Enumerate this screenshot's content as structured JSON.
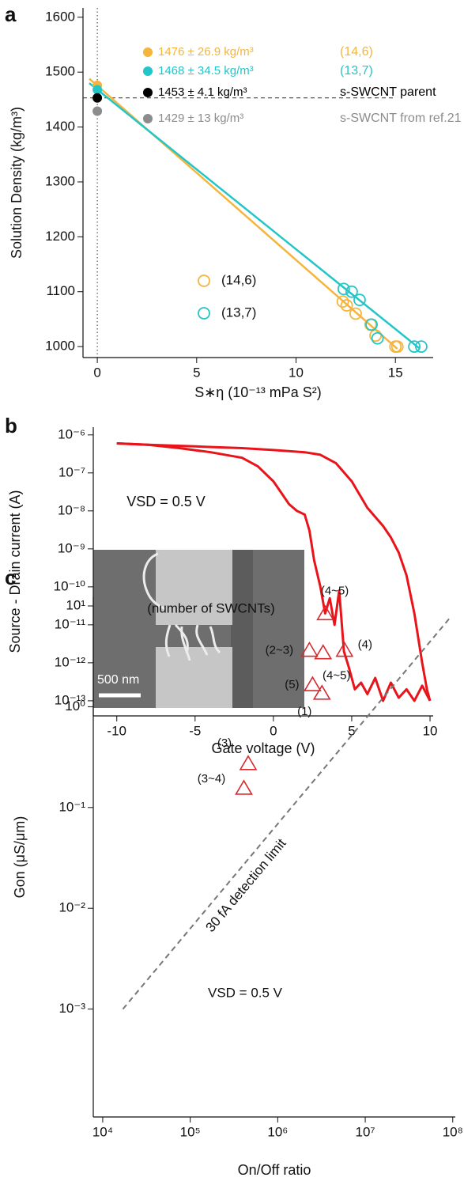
{
  "chart_data": [
    {
      "type": "scatter",
      "panel": "a",
      "xlabel": "S∗η (10⁻¹³ mPa S²)",
      "ylabel": "Solution Density (kg/m³)",
      "xlim": [
        -0.72,
        16.9
      ],
      "ylim": [
        980,
        1617
      ],
      "xticks": [
        0,
        5,
        10,
        15
      ],
      "yticks": [
        1000,
        1100,
        1200,
        1300,
        1400,
        1500,
        1600
      ],
      "series": [
        {
          "name": "(14,6)",
          "color": "#f5b53d",
          "marker": "open-circle",
          "x": [
            12.35,
            12.55,
            13.0,
            13.75,
            14.0,
            15.0,
            15.1
          ],
          "values": [
            1082,
            1075,
            1060,
            1040,
            1020,
            1000,
            1000
          ]
        },
        {
          "name": "(13,7)",
          "color": "#23c6c8",
          "marker": "open-circle",
          "x": [
            12.4,
            12.8,
            13.2,
            13.8,
            14.1,
            15.95,
            16.3
          ],
          "values": [
            1105,
            1100,
            1085,
            1040,
            1015,
            1000,
            1000
          ]
        }
      ],
      "fits": [
        {
          "color": "#f5b53d",
          "x": [
            -0.4,
            15.1
          ],
          "values": [
            1488,
            996
          ]
        },
        {
          "color": "#23c6c8",
          "x": [
            -0.4,
            16.2
          ],
          "values": [
            1480,
            997
          ]
        }
      ],
      "intercepts": [
        {
          "x": 0,
          "value": 1476,
          "color": "#f5b53d",
          "label": "1476 ± 26.9 kg/m³",
          "tag": "(14,6)"
        },
        {
          "x": 0,
          "value": 1468,
          "color": "#23c6c8",
          "label": "1468 ± 34.5 kg/m³",
          "tag": "(13,7)"
        },
        {
          "x": 0,
          "value": 1453,
          "color": "#000000",
          "label": "1453 ± 4.1 kg/m³",
          "tag": "s-SWCNT parent"
        },
        {
          "x": 0,
          "value": 1429,
          "color": "#8c8c8c",
          "label": "1429 ± 13 kg/m³",
          "tag": "s-SWCNT from ref.21"
        }
      ],
      "ref_line": 1453,
      "vline": 0,
      "legend": "lower center"
    },
    {
      "type": "line",
      "panel": "b",
      "xlabel": "Gate voltage (V)",
      "ylabel": "Source - Drain current (A)",
      "xlim": [
        -11.5,
        10.2
      ],
      "ylim": [
        4e-14,
        1.6e-06
      ],
      "yscale": "log",
      "xticks": [
        -10,
        -5,
        0,
        5,
        10
      ],
      "yticks": [
        {
          "value": 1e-06,
          "label": "10⁻⁶"
        },
        {
          "value": 1e-07,
          "label": "10⁻⁷"
        },
        {
          "value": 1e-08,
          "label": "10⁻⁸"
        },
        {
          "value": 1e-09,
          "label": "10⁻⁹"
        },
        {
          "value": 1e-10,
          "label": "10⁻¹⁰"
        },
        {
          "value": 1e-11,
          "label": "10⁻¹¹"
        },
        {
          "value": 1e-12,
          "label": "10⁻¹²"
        },
        {
          "value": 1e-13,
          "label": "10⁻¹³"
        }
      ],
      "series": [
        {
          "color": "#e8141a",
          "x": [
            -10,
            -8,
            -6,
            -4,
            -2,
            -1,
            0,
            0.5,
            1,
            1.5,
            2,
            2.3,
            2.6,
            3,
            3.3,
            3.6,
            3.9,
            4.2,
            4.5,
            4.8,
            5.2,
            5.6,
            6,
            6.5,
            7,
            7.5,
            8,
            8.5,
            9,
            9.5,
            10
          ],
          "values": [
            6e-07,
            5.5e-07,
            4.5e-07,
            3.5e-07,
            2.5e-07,
            1.5e-07,
            6e-08,
            3e-08,
            1.5e-08,
            1e-08,
            8e-09,
            3e-09,
            5e-10,
            1e-10,
            2e-11,
            5e-11,
            1e-11,
            8e-11,
            2e-12,
            8e-13,
            2e-13,
            3e-13,
            1.5e-13,
            4e-13,
            1e-13,
            3e-13,
            1.2e-13,
            2e-13,
            1e-13,
            2.5e-13,
            1e-13
          ]
        },
        {
          "color": "#e8141a",
          "x": [
            -10,
            -8,
            -5,
            -2,
            0,
            2,
            3,
            4,
            5,
            6,
            7,
            7.5,
            8,
            8.5,
            9,
            9.5,
            9.8,
            10
          ],
          "values": [
            6e-07,
            5.5e-07,
            5e-07,
            4.5e-07,
            4e-07,
            3.5e-07,
            3e-07,
            1.8e-07,
            6e-08,
            1.2e-08,
            4e-09,
            2e-09,
            8e-10,
            2e-10,
            2e-11,
            1e-12,
            2e-13,
            1e-13
          ]
        }
      ],
      "annotation": "VSD = 0.5 V",
      "inset_scale": "500 nm"
    },
    {
      "type": "scatter",
      "panel": "c",
      "xlabel": "On/Off ratio",
      "ylabel": "Gon (μS/μm)",
      "xscale": "log",
      "yscale": "log",
      "xlim": [
        7800,
        107000000.0
      ],
      "ylim": [
        8.5e-05,
        12.2
      ],
      "xticks": [
        {
          "value": 10000,
          "label": "10⁴"
        },
        {
          "value": 100000,
          "label": "10⁵"
        },
        {
          "value": 1000000,
          "label": "10⁶"
        },
        {
          "value": 10000000,
          "label": "10⁷"
        },
        {
          "value": 100000000,
          "label": "10⁸"
        }
      ],
      "yticks": [
        {
          "value": 10,
          "label": "10¹"
        },
        {
          "value": 1,
          "label": "10⁰"
        },
        {
          "value": 0.1,
          "label": "10⁻¹"
        },
        {
          "value": 0.01,
          "label": "10⁻²"
        },
        {
          "value": 0.001,
          "label": "10⁻³"
        }
      ],
      "series": [
        {
          "color": "#d62a2f",
          "marker": "triangle",
          "x": [
            410000,
            460000,
            2500000,
            3200000,
            2300000,
            3300000,
            3500000,
            5800000
          ],
          "values": [
            0.154,
            0.27,
            1.64,
            1.35,
            3.6,
            3.4,
            8.3,
            3.6
          ],
          "labels": [
            "(3~4)",
            "(3)",
            "(5)",
            "(1)",
            "(2~3)",
            "(4~5)",
            "(4~5)",
            "(4)"
          ]
        }
      ],
      "limit_line": {
        "label": "30 fA detection limit",
        "x": [
          17000,
          95000000
        ],
        "values": [
          0.001,
          7.8
        ]
      },
      "annotations": [
        "(number of SWCNTs)",
        "VSD = 0.5 V"
      ]
    }
  ]
}
